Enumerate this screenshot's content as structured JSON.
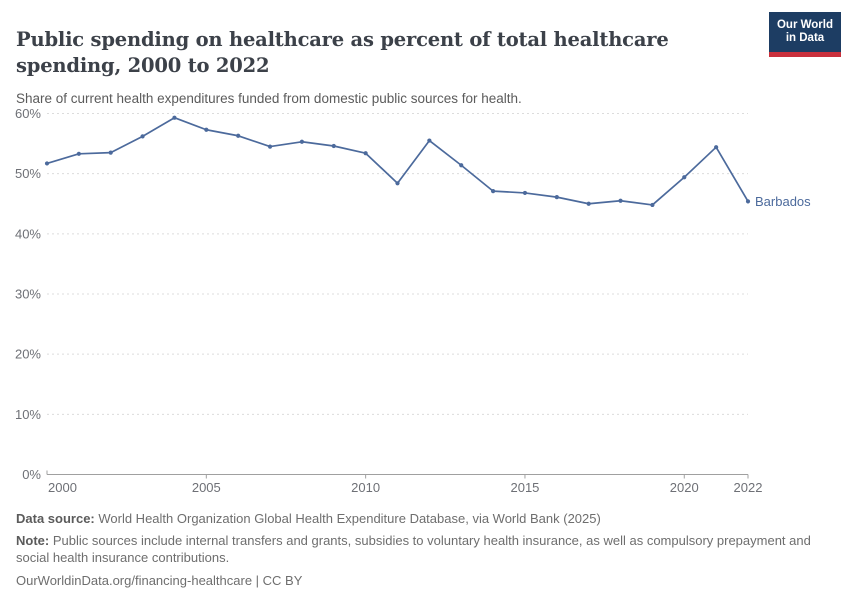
{
  "header": {
    "title": "Public spending on healthcare as percent of total healthcare spending, 2000 to 2022",
    "subtitle": "Share of current health expenditures funded from domestic public sources for health.",
    "logo_line1": "Our World",
    "logo_line2": "in Data"
  },
  "colors": {
    "line": "#4C6A9C",
    "entity_label": "#4C6A9C",
    "gridline": "#dcdcdc",
    "axis": "#a0a0a0",
    "tick_label": "#6e7076",
    "logo_bg": "#1d3d63",
    "logo_red": "#c9303c"
  },
  "chart_data": {
    "type": "line",
    "title": "Public spending on healthcare as percent of total healthcare spending, 2000 to 2022",
    "xlabel": "",
    "ylabel": "",
    "xlim": [
      2000,
      2022
    ],
    "ylim": [
      0,
      60
    ],
    "yticks": [
      0,
      10,
      20,
      30,
      40,
      50,
      60
    ],
    "ytick_suffix": "%",
    "xticks": [
      2000,
      2005,
      2010,
      2015,
      2020,
      2022
    ],
    "grid": "horizontal-dashed",
    "legend_position": "end-of-line-label",
    "series": [
      {
        "name": "Barbados",
        "x": [
          2000,
          2001,
          2002,
          2003,
          2004,
          2005,
          2006,
          2007,
          2008,
          2009,
          2010,
          2011,
          2012,
          2013,
          2014,
          2015,
          2016,
          2017,
          2018,
          2019,
          2020,
          2021,
          2022
        ],
        "values": [
          51.7,
          53.3,
          53.5,
          56.2,
          59.3,
          57.3,
          56.3,
          54.5,
          55.3,
          54.6,
          53.4,
          48.4,
          55.5,
          51.4,
          47.1,
          46.8,
          46.1,
          45.0,
          45.5,
          44.8,
          49.4,
          54.4,
          45.4
        ]
      }
    ]
  },
  "footer": {
    "source_label": "Data source:",
    "source_text": " World Health Organization Global Health Expenditure Database, via World Bank (2025)",
    "note_label": "Note:",
    "note_text": " Public sources include internal transfers and grants, subsidies to voluntary health insurance, as well as compulsory prepayment and social health insurance contributions.",
    "url_text": "OurWorldinData.org/financing-healthcare | CC BY"
  }
}
